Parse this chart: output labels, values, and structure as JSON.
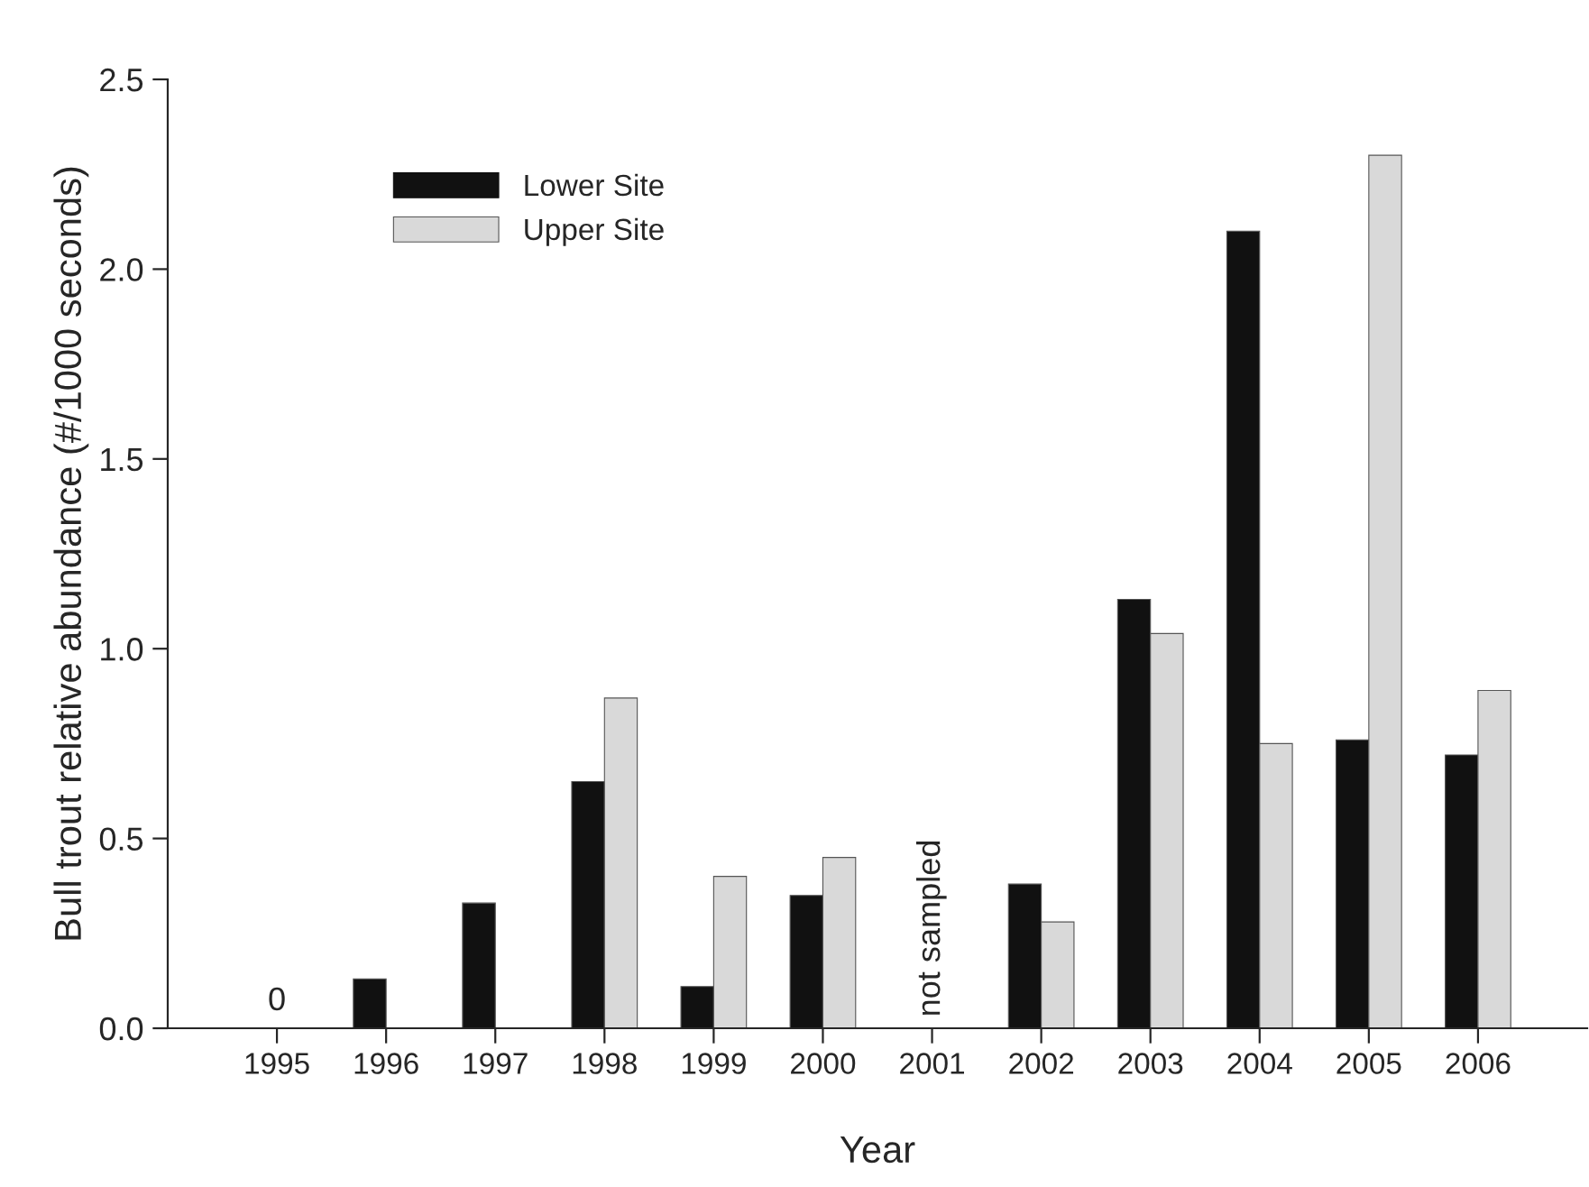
{
  "chart_data": {
    "type": "bar",
    "xlabel": "Year",
    "ylabel": "Bull trout relative abundance (#/1000 seconds)",
    "categories": [
      "1995",
      "1996",
      "1997",
      "1998",
      "1999",
      "2000",
      "2001",
      "2002",
      "2003",
      "2004",
      "2005",
      "2006"
    ],
    "series": [
      {
        "name": "Lower Site",
        "color": "#111111",
        "values": [
          0,
          0.13,
          0.33,
          0.65,
          0.11,
          0.35,
          null,
          0.38,
          1.13,
          2.1,
          0.76,
          0.72
        ]
      },
      {
        "name": "Upper Site",
        "color": "#d9d9d9",
        "values": [
          null,
          null,
          null,
          0.87,
          0.4,
          0.45,
          null,
          0.28,
          1.04,
          0.75,
          2.3,
          0.89
        ]
      }
    ],
    "ylim": [
      0,
      2.5
    ],
    "yticks": [
      {
        "value": 0,
        "label": "0.0"
      },
      {
        "value": 0.5,
        "label": "0.5"
      },
      {
        "value": 1,
        "label": "1.0"
      },
      {
        "value": 1.5,
        "label": "1.5"
      },
      {
        "value": 2,
        "label": "2.0"
      },
      {
        "value": 2.5,
        "label": "2.5"
      }
    ],
    "annotations": [
      {
        "text": "0",
        "x": "1995",
        "y": 0
      },
      "not sampled"
    ],
    "legend": "top left",
    "grid": false
  }
}
